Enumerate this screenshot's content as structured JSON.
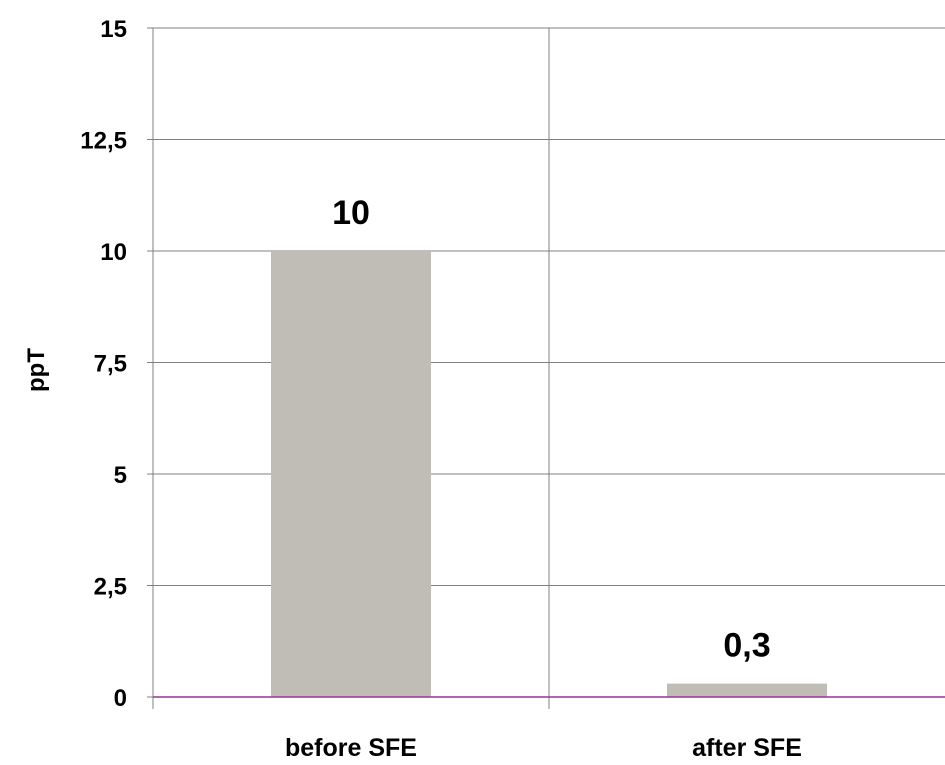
{
  "chart_data": {
    "type": "bar",
    "title": "",
    "xlabel": "",
    "ylabel": "ppT",
    "categories": [
      "before SFE",
      "after SFE"
    ],
    "values": [
      10,
      0.3
    ],
    "data_labels": [
      "10",
      "0,3"
    ],
    "ylim": [
      0,
      15
    ],
    "yticks": [
      0,
      2.5,
      5,
      7.5,
      10,
      12.5,
      15
    ],
    "ytick_labels": [
      "0",
      "2,5",
      "5",
      "7,5",
      "10",
      "12,5",
      "15"
    ],
    "grid": true,
    "legend": "none",
    "colors": {
      "bar": "#c0bcb6",
      "grid": "#808080",
      "baseline": "#993399"
    }
  }
}
